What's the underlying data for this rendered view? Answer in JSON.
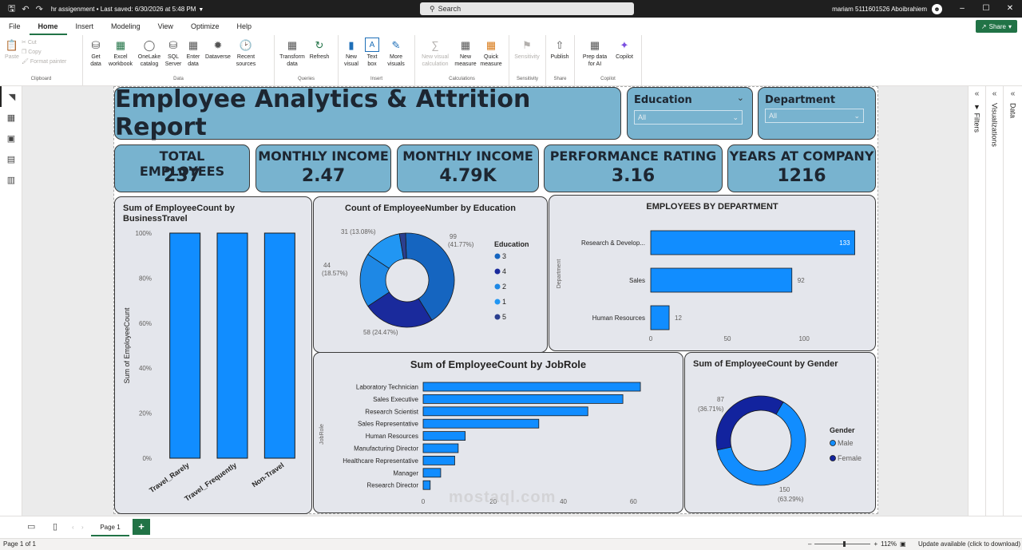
{
  "titlebar": {
    "doc_title": "hr assigenment • Last saved: 6/30/2026 at 5:48 PM",
    "search_placeholder": "Search",
    "user_name": "mariam 5111601526 Aboibrahiem"
  },
  "menu": {
    "tabs": [
      "File",
      "Home",
      "Insert",
      "Modeling",
      "View",
      "Optimize",
      "Help"
    ],
    "active": "Home",
    "share_label": "Share"
  },
  "ribbon": {
    "clipboard": {
      "paste": "Paste",
      "cut": "Cut",
      "copy": "Copy",
      "format_painter": "Format painter",
      "label": "Clipboard"
    },
    "data": {
      "get_data": "Get data",
      "excel": "Excel workbook",
      "onelake": "OneLake catalog",
      "sql": "SQL Server",
      "enter": "Enter data",
      "dataverse": "Dataverse",
      "recent": "Recent sources",
      "label": "Data"
    },
    "queries": {
      "transform": "Transform data",
      "refresh": "Refresh",
      "label": "Queries"
    },
    "insert": {
      "new_visual": "New visual",
      "text_box": "Text box",
      "more_visuals": "More visuals",
      "label": "Insert"
    },
    "calculations": {
      "new_visual_calc": "New visual calculation",
      "new_measure": "New measure",
      "quick_measure": "Quick measure",
      "label": "Calculations"
    },
    "sensitivity": {
      "btn": "Sensitivity",
      "label": "Sensitivity"
    },
    "share": {
      "publish": "Publish",
      "label": "Share"
    },
    "copilot": {
      "prep": "Prep data for AI",
      "copilot": "Copilot",
      "label": "Copilot"
    }
  },
  "panes": {
    "filters": "Filters",
    "visualizations": "Visualizations",
    "data": "Data"
  },
  "report": {
    "title": "Employee Analytics & Attrition Report",
    "slicers": [
      {
        "title": "Education",
        "value": "All"
      },
      {
        "title": "Department",
        "value": "All"
      }
    ],
    "kpis": [
      {
        "label": "TOTAL EMPLOYEES",
        "value": "237"
      },
      {
        "label": "MONTHLY INCOME",
        "value": "2.47"
      },
      {
        "label": "MONTHLY INCOME",
        "value": "4.79K"
      },
      {
        "label": "PERFORMANCE RATING",
        "value": "3.16"
      },
      {
        "label": "YEARS AT COMPANY",
        "value": "1216"
      }
    ]
  },
  "chart_data": [
    {
      "type": "bar",
      "title": "Sum of EmployeeCount by BusinessTravel",
      "ylabel": "Sum of EmployeeCount",
      "categories": [
        "Travel_Rarely",
        "Travel_Frequently",
        "Non-Travel"
      ],
      "values": [
        100,
        100,
        100
      ],
      "y_ticks": [
        "0%",
        "20%",
        "40%",
        "60%",
        "80%",
        "100%"
      ],
      "ylim": [
        0,
        100
      ],
      "color": "#118dff"
    },
    {
      "type": "pie",
      "title": "Count of EmployeeNumber by Education",
      "legend_title": "Education",
      "legend": [
        "3",
        "4",
        "2",
        "1",
        "5"
      ],
      "values": [
        99,
        58,
        44,
        31,
        5
      ],
      "labels": [
        "99 (41.77%)",
        "58 (24.47%)",
        "44 (18.57%)",
        "31 (13.08%)",
        ""
      ],
      "colors": [
        "#1565c0",
        "#1a2a9c",
        "#1e88e5",
        "#2196f3",
        "#2b3f8f"
      ]
    },
    {
      "type": "bar",
      "orientation": "horizontal",
      "title": "EMPLOYEES BY DEPARTMENT",
      "ylabel": "Department",
      "categories": [
        "Research & Develop...",
        "Sales",
        "Human Resources"
      ],
      "values": [
        133,
        92,
        12
      ],
      "x_ticks": [
        "0",
        "50",
        "100"
      ],
      "xlim": [
        0,
        140
      ],
      "color": "#118dff"
    },
    {
      "type": "bar",
      "orientation": "horizontal",
      "title": "Sum of EmployeeCount by JobRole",
      "ylabel": "JobRole",
      "categories": [
        "Laboratory Technician",
        "Sales Executive",
        "Research Scientist",
        "Sales Representative",
        "Human Resources",
        "Manufacturing Director",
        "Healthcare Representative",
        "Manager",
        "Research Director"
      ],
      "values": [
        62,
        57,
        47,
        33,
        12,
        10,
        9,
        5,
        2
      ],
      "x_ticks": [
        "0",
        "20",
        "40",
        "60"
      ],
      "xlim": [
        0,
        67
      ],
      "color": "#118dff"
    },
    {
      "type": "pie",
      "title": "Sum of EmployeeCount by Gender",
      "legend_title": "Gender",
      "legend": [
        "Male",
        "Female"
      ],
      "values": [
        150,
        87
      ],
      "labels": [
        "150 (63.29%)",
        "87 (36.71%)"
      ],
      "colors": [
        "#118dff",
        "#12239e"
      ]
    }
  ],
  "pagebar": {
    "page_tab": "Page 1"
  },
  "status": {
    "page": "Page 1 of 1",
    "zoom": "112%",
    "update": "Update available (click to download)"
  },
  "watermark": "mostaql.com"
}
